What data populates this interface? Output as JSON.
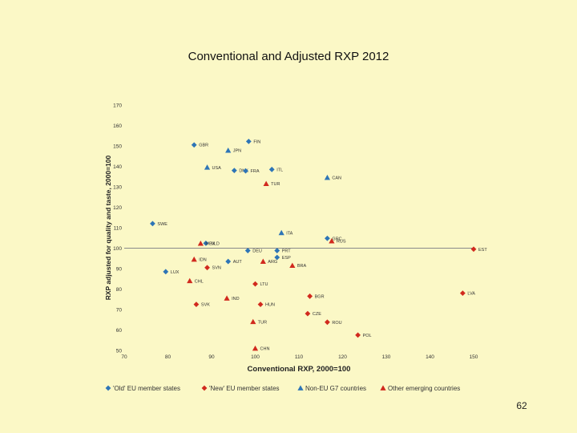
{
  "slide": {
    "title": "Conventional and Adjusted RXP 2012",
    "page_number": "62"
  },
  "colors": {
    "old_eu": "#2e75b6",
    "new_eu": "#d12a1e",
    "non_eu": "#2e75b6",
    "emerging": "#d12a1e",
    "background": "#fbf8c6"
  },
  "chart_data": {
    "type": "scatter",
    "title": "Conventional and Adjusted RXP 2012",
    "xlabel": "Conventional RXP, 2000=100",
    "ylabel": "RXP adjusted for quality and taste, 2000=100",
    "xlim": [
      70,
      150
    ],
    "ylim": [
      50,
      170
    ],
    "xticks": [
      70,
      80,
      90,
      100,
      110,
      120,
      130,
      140,
      150
    ],
    "yticks": [
      50,
      60,
      70,
      80,
      90,
      100,
      110,
      120,
      130,
      140,
      150,
      160,
      170
    ],
    "ytick_labels": [
      "50",
      "60",
      "70",
      "80",
      "90",
      "100",
      "110",
      "120",
      "130",
      "140",
      "150",
      "160",
      "170"
    ],
    "reference_line_y": 100,
    "grid": false,
    "legend_position": "bottom",
    "series": [
      {
        "name": "'Old' EU member states",
        "marker": "diamond",
        "color": "#2e75b6",
        "points": [
          {
            "label": "FIN",
            "x": 98.5,
            "y": 152.2
          },
          {
            "label": "GBR",
            "x": 86,
            "y": 150.5
          },
          {
            "label": "DNK",
            "x": 95.2,
            "y": 138
          },
          {
            "label": "FRA",
            "x": 97.8,
            "y": 137.8
          },
          {
            "label": "ITL",
            "x": 103.8,
            "y": 138.5
          },
          {
            "label": "SWE",
            "x": 76.5,
            "y": 112
          },
          {
            "label": "NLD",
            "x": 88.7,
            "y": 102.4
          },
          {
            "label": "DEU",
            "x": 98.3,
            "y": 98.8
          },
          {
            "label": "PRT",
            "x": 105,
            "y": 98.8
          },
          {
            "label": "ESP",
            "x": 105,
            "y": 95.5
          },
          {
            "label": "AUT",
            "x": 93.8,
            "y": 93.5
          },
          {
            "label": "LUX",
            "x": 79.5,
            "y": 88.5
          },
          {
            "label": "GRC",
            "x": 116.5,
            "y": 104.8
          }
        ]
      },
      {
        "name": "'New' EU member states",
        "marker": "diamond",
        "color": "#d12a1e",
        "points": [
          {
            "label": "LVA",
            "x": 147.5,
            "y": 78
          },
          {
            "label": "EST",
            "x": 150,
            "y": 99.5
          },
          {
            "label": "LTU",
            "x": 100,
            "y": 82.5
          },
          {
            "label": "SVN",
            "x": 89,
            "y": 90.5
          },
          {
            "label": "SVK",
            "x": 86.5,
            "y": 72.5
          },
          {
            "label": "HUN",
            "x": 101.2,
            "y": 72.5
          },
          {
            "label": "BGR",
            "x": 112.5,
            "y": 76.5
          },
          {
            "label": "CZE",
            "x": 112,
            "y": 68
          },
          {
            "label": "ROU",
            "x": 116.5,
            "y": 63.8
          },
          {
            "label": "POL",
            "x": 123.5,
            "y": 57.5
          }
        ]
      },
      {
        "name": "Non-EU G7 countries",
        "marker": "triangle",
        "color": "#2e75b6",
        "points": [
          {
            "label": "JPN",
            "x": 93.8,
            "y": 147.8
          },
          {
            "label": "USA",
            "x": 89,
            "y": 139.5
          },
          {
            "label": "CAN",
            "x": 116.5,
            "y": 134.5
          },
          {
            "label": "ITA",
            "x": 106,
            "y": 107.5
          }
        ]
      },
      {
        "name": "Other emerging countries",
        "marker": "triangle",
        "color": "#d12a1e",
        "points": [
          {
            "label": "TUR",
            "x": 102.5,
            "y": 131.5
          },
          {
            "label": "MEX",
            "x": 87.5,
            "y": 102.3
          },
          {
            "label": "RUS",
            "x": 117.5,
            "y": 103.5
          },
          {
            "label": "IDN",
            "x": 86,
            "y": 94.5
          },
          {
            "label": "ARG",
            "x": 101.8,
            "y": 93.5
          },
          {
            "label": "BRA",
            "x": 108.5,
            "y": 91.5
          },
          {
            "label": "CHL",
            "x": 85,
            "y": 84
          },
          {
            "label": "IND",
            "x": 93.5,
            "y": 75.5
          },
          {
            "label": "TUR",
            "x": 99.5,
            "y": 64
          },
          {
            "label": "CHN",
            "x": 100,
            "y": 51
          }
        ]
      }
    ],
    "visible_point_labels": {
      "TUR": "TUR",
      "MEX": "MEX",
      "RUS": "RUS",
      "IDN": "IDN",
      "ARG": "ARG",
      "BRA": "BRA",
      "CHL": "CHL",
      "IND": "IND",
      "CHN": "CHN"
    }
  }
}
